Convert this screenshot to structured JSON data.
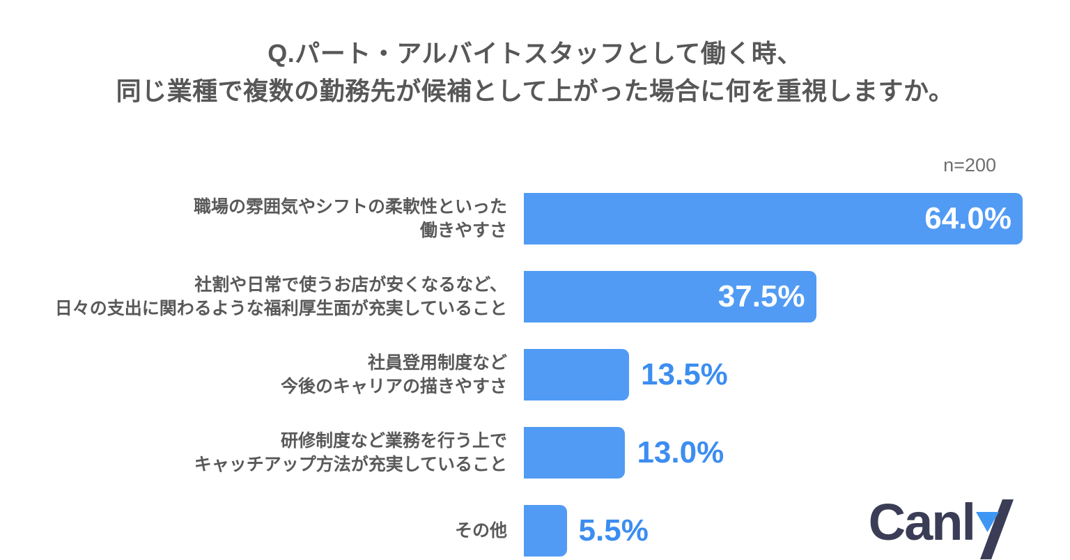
{
  "title": {
    "line1": "Q.パート・アルバイトスタッフとして働く時、",
    "line2": "同じ業種で複数の勤務先が候補として上がった場合に何を重視しますか。"
  },
  "sample_size": "n=200",
  "chart_data": {
    "type": "bar",
    "orientation": "horizontal",
    "categories": [
      [
        "職場の雰囲気やシフトの柔軟性といった",
        "働きやすさ"
      ],
      [
        "社割や日常で使うお店が安くなるなど、",
        "日々の支出に関わるような福利厚生面が充実していること"
      ],
      [
        "社員登用制度など",
        "今後のキャリアの描きやすさ"
      ],
      [
        "研修制度など業務を行う上で",
        "キャッチアップ方法が充実していること"
      ],
      [
        "その他"
      ]
    ],
    "values": [
      64.0,
      37.5,
      13.5,
      13.0,
      5.5
    ],
    "value_labels": [
      "64.0%",
      "37.5%",
      "13.5%",
      "13.0%",
      "5.5%"
    ],
    "xlim": [
      0,
      64
    ],
    "grid": false,
    "legend": "none",
    "colors": {
      "bar": "#519bf4",
      "value_inside_text": "#ffffff",
      "value_outside_text": "#3c8df0",
      "category_text": "#595959",
      "title_text": "#575757"
    }
  },
  "logo": {
    "text": "Canly",
    "text_main": "Canl",
    "color": "#3a3d55",
    "accent": "#3e96f4"
  }
}
